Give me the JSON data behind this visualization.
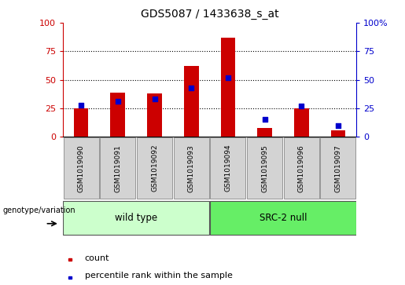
{
  "title": "GDS5087 / 1433638_s_at",
  "samples": [
    "GSM1019090",
    "GSM1019091",
    "GSM1019092",
    "GSM1019093",
    "GSM1019094",
    "GSM1019095",
    "GSM1019096",
    "GSM1019097"
  ],
  "counts": [
    25,
    39,
    38,
    62,
    87,
    8,
    25,
    6
  ],
  "percentiles": [
    28,
    31,
    33,
    43,
    52,
    15,
    27,
    10
  ],
  "groups": [
    {
      "label": "wild type",
      "start": 0,
      "end": 4,
      "color": "#CCFFCC"
    },
    {
      "label": "SRC-2 null",
      "start": 4,
      "end": 8,
      "color": "#66EE66"
    }
  ],
  "group_label_prefix": "genotype/variation",
  "left_axis_color": "#CC0000",
  "right_axis_color": "#0000CC",
  "bar_color": "#CC0000",
  "dot_color": "#0000CC",
  "yticks": [
    0,
    25,
    50,
    75,
    100
  ],
  "ylim": [
    0,
    100
  ],
  "legend_count_label": "count",
  "legend_percentile_label": "percentile rank within the sample",
  "bar_width": 0.4,
  "dot_size": 25
}
